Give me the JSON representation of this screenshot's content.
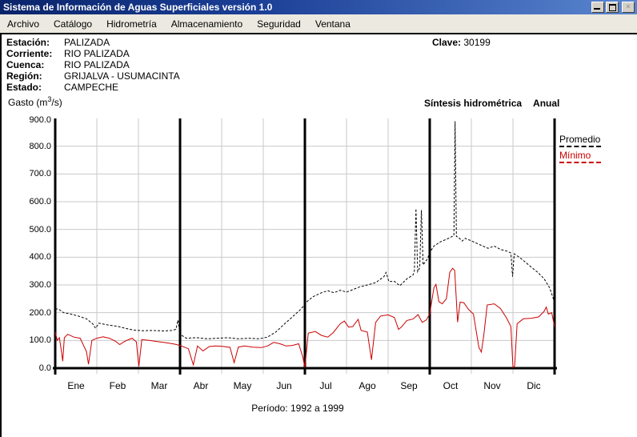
{
  "window": {
    "title": "Sistema de Información de Aguas Superficiales  versión 1.0",
    "controls": {
      "minimize": "minimize",
      "restore": "restore",
      "close": "×"
    }
  },
  "menu": {
    "items": [
      "Archivo",
      "Catálogo",
      "Hidrometría",
      "Almacenamiento",
      "Seguridad",
      "Ventana"
    ]
  },
  "station_info": {
    "rows": [
      {
        "label": "Estación:",
        "value": "PALIZADA"
      },
      {
        "label": "Corriente:",
        "value": "RIO PALIZADA"
      },
      {
        "label": "Cuenca:",
        "value": "RIO PALIZADA"
      },
      {
        "label": "Región:",
        "value": "GRIJALVA - USUMACINTA"
      },
      {
        "label": "Estado:",
        "value": "CAMPECHE"
      }
    ],
    "clave_label": "Clave:",
    "clave_value": "30199"
  },
  "chart_header": {
    "gasto_prefix": "Gasto (m",
    "gasto_sup": "3",
    "gasto_suffix": "/s)",
    "title": "Síntesis hidrométrica",
    "mode": "Anual"
  },
  "footer": {
    "periodo": "Período:  1992 a 1999"
  },
  "chart_data": {
    "type": "line",
    "title": "Síntesis hidrométrica Anual",
    "ylabel": "Gasto (m3/s)",
    "xlabel": "",
    "ylim": [
      0,
      900
    ],
    "yticks": [
      "900.0",
      "800.0",
      "700.0",
      "600.0",
      "500.0",
      "400.0",
      "300.0",
      "200.0",
      "100.0",
      "0.0"
    ],
    "ytick_values": [
      900,
      800,
      700,
      600,
      500,
      400,
      300,
      200,
      100,
      0
    ],
    "categories": [
      "Ene",
      "Feb",
      "Mar",
      "Abr",
      "May",
      "Jun",
      "Jul",
      "Ago",
      "Sep",
      "Oct",
      "Nov",
      "Dic"
    ],
    "x_months": 12,
    "quarter_lines_months": [
      0,
      3,
      6,
      9,
      12
    ],
    "grid": true,
    "legend_position": "right",
    "legend": [
      {
        "name": "Promedio",
        "color": "#000000",
        "style": "dashed"
      },
      {
        "name": "Mínimo",
        "color": "#cc0000",
        "style": "solid"
      }
    ],
    "series": [
      {
        "name": "Promedio",
        "color": "#000000",
        "style": "dashed",
        "points": [
          [
            0.0,
            215
          ],
          [
            0.1,
            211
          ],
          [
            0.2,
            200
          ],
          [
            0.35,
            196
          ],
          [
            0.55,
            188
          ],
          [
            0.75,
            178
          ],
          [
            0.9,
            160
          ],
          [
            0.97,
            144
          ],
          [
            1.05,
            162
          ],
          [
            1.25,
            156
          ],
          [
            1.5,
            151
          ],
          [
            1.7,
            143
          ],
          [
            1.9,
            137
          ],
          [
            2.1,
            135
          ],
          [
            2.35,
            136
          ],
          [
            2.6,
            134
          ],
          [
            2.8,
            136
          ],
          [
            2.9,
            140
          ],
          [
            2.95,
            173
          ],
          [
            3.0,
            122
          ],
          [
            3.15,
            108
          ],
          [
            3.4,
            110
          ],
          [
            3.65,
            106
          ],
          [
            3.9,
            108
          ],
          [
            4.15,
            110
          ],
          [
            4.4,
            106
          ],
          [
            4.65,
            108
          ],
          [
            4.9,
            106
          ],
          [
            5.1,
            112
          ],
          [
            5.3,
            130
          ],
          [
            5.5,
            158
          ],
          [
            5.7,
            185
          ],
          [
            5.9,
            212
          ],
          [
            6.05,
            240
          ],
          [
            6.2,
            258
          ],
          [
            6.4,
            272
          ],
          [
            6.55,
            279
          ],
          [
            6.7,
            272
          ],
          [
            6.85,
            281
          ],
          [
            7.0,
            274
          ],
          [
            7.15,
            283
          ],
          [
            7.3,
            292
          ],
          [
            7.5,
            300
          ],
          [
            7.7,
            308
          ],
          [
            7.9,
            330
          ],
          [
            7.95,
            345
          ],
          [
            8.02,
            312
          ],
          [
            8.15,
            313
          ],
          [
            8.28,
            297
          ],
          [
            8.45,
            322
          ],
          [
            8.6,
            336
          ],
          [
            8.63,
            350
          ],
          [
            8.67,
            575
          ],
          [
            8.71,
            348
          ],
          [
            8.76,
            362
          ],
          [
            8.8,
            570
          ],
          [
            8.84,
            372
          ],
          [
            8.95,
            395
          ],
          [
            9.0,
            417
          ],
          [
            9.1,
            440
          ],
          [
            9.25,
            455
          ],
          [
            9.45,
            468
          ],
          [
            9.58,
            478
          ],
          [
            9.61,
            890
          ],
          [
            9.64,
            475
          ],
          [
            9.7,
            470
          ],
          [
            9.78,
            458
          ],
          [
            9.85,
            468
          ],
          [
            9.95,
            462
          ],
          [
            10.1,
            452
          ],
          [
            10.25,
            442
          ],
          [
            10.4,
            432
          ],
          [
            10.55,
            440
          ],
          [
            10.7,
            428
          ],
          [
            10.85,
            422
          ],
          [
            10.95,
            415
          ],
          [
            10.99,
            330
          ],
          [
            11.03,
            412
          ],
          [
            11.15,
            400
          ],
          [
            11.3,
            382
          ],
          [
            11.45,
            363
          ],
          [
            11.6,
            345
          ],
          [
            11.75,
            322
          ],
          [
            11.88,
            290
          ],
          [
            11.96,
            255
          ],
          [
            12.0,
            238
          ]
        ]
      },
      {
        "name": "Mínimo",
        "color": "#cc0000",
        "style": "solid",
        "points": [
          [
            0.0,
            130
          ],
          [
            0.05,
            100
          ],
          [
            0.1,
            110
          ],
          [
            0.15,
            60
          ],
          [
            0.18,
            25
          ],
          [
            0.22,
            110
          ],
          [
            0.3,
            122
          ],
          [
            0.45,
            112
          ],
          [
            0.6,
            108
          ],
          [
            0.75,
            60
          ],
          [
            0.8,
            14
          ],
          [
            0.88,
            100
          ],
          [
            1.0,
            108
          ],
          [
            1.15,
            113
          ],
          [
            1.3,
            108
          ],
          [
            1.45,
            97
          ],
          [
            1.55,
            85
          ],
          [
            1.65,
            95
          ],
          [
            1.75,
            102
          ],
          [
            1.85,
            108
          ],
          [
            1.95,
            95
          ],
          [
            2.01,
            6
          ],
          [
            2.08,
            103
          ],
          [
            2.25,
            100
          ],
          [
            2.45,
            96
          ],
          [
            2.65,
            92
          ],
          [
            2.85,
            87
          ],
          [
            3.0,
            82
          ],
          [
            3.2,
            70
          ],
          [
            3.32,
            12
          ],
          [
            3.42,
            80
          ],
          [
            3.55,
            62
          ],
          [
            3.7,
            78
          ],
          [
            3.85,
            80
          ],
          [
            4.0,
            79
          ],
          [
            4.2,
            75
          ],
          [
            4.3,
            20
          ],
          [
            4.4,
            76
          ],
          [
            4.55,
            80
          ],
          [
            4.75,
            76
          ],
          [
            4.95,
            74
          ],
          [
            5.1,
            80
          ],
          [
            5.25,
            93
          ],
          [
            5.4,
            88
          ],
          [
            5.55,
            80
          ],
          [
            5.7,
            82
          ],
          [
            5.85,
            88
          ],
          [
            5.95,
            40
          ],
          [
            6.0,
            2
          ],
          [
            6.08,
            126
          ],
          [
            6.25,
            132
          ],
          [
            6.4,
            118
          ],
          [
            6.55,
            112
          ],
          [
            6.68,
            128
          ],
          [
            6.85,
            160
          ],
          [
            6.95,
            170
          ],
          [
            7.05,
            148
          ],
          [
            7.15,
            150
          ],
          [
            7.28,
            176
          ],
          [
            7.35,
            136
          ],
          [
            7.5,
            130
          ],
          [
            7.6,
            30
          ],
          [
            7.7,
            165
          ],
          [
            7.82,
            188
          ],
          [
            8.0,
            192
          ],
          [
            8.15,
            183
          ],
          [
            8.25,
            140
          ],
          [
            8.32,
            148
          ],
          [
            8.45,
            172
          ],
          [
            8.6,
            177
          ],
          [
            8.72,
            193
          ],
          [
            8.82,
            165
          ],
          [
            8.92,
            174
          ],
          [
            9.0,
            196
          ],
          [
            9.1,
            290
          ],
          [
            9.15,
            302
          ],
          [
            9.22,
            240
          ],
          [
            9.3,
            232
          ],
          [
            9.4,
            250
          ],
          [
            9.48,
            345
          ],
          [
            9.55,
            360
          ],
          [
            9.6,
            352
          ],
          [
            9.67,
            166
          ],
          [
            9.73,
            238
          ],
          [
            9.82,
            236
          ],
          [
            9.93,
            212
          ],
          [
            10.05,
            195
          ],
          [
            10.18,
            75
          ],
          [
            10.24,
            58
          ],
          [
            10.3,
            120
          ],
          [
            10.38,
            228
          ],
          [
            10.55,
            232
          ],
          [
            10.7,
            215
          ],
          [
            10.85,
            180
          ],
          [
            10.95,
            150
          ],
          [
            11.0,
            2
          ],
          [
            11.04,
            8
          ],
          [
            11.1,
            160
          ],
          [
            11.25,
            178
          ],
          [
            11.45,
            180
          ],
          [
            11.62,
            185
          ],
          [
            11.75,
            205
          ],
          [
            11.8,
            220
          ],
          [
            11.85,
            195
          ],
          [
            11.93,
            200
          ],
          [
            12.0,
            150
          ]
        ]
      }
    ]
  },
  "layout_colors": {
    "titlebar_left": "#0a246a",
    "titlebar_right": "#5a86cf",
    "menubar_bg": "#ece9e0",
    "grid_color": "#c9c9c9",
    "axis_color": "#000000",
    "min_line": "#cc0000"
  }
}
